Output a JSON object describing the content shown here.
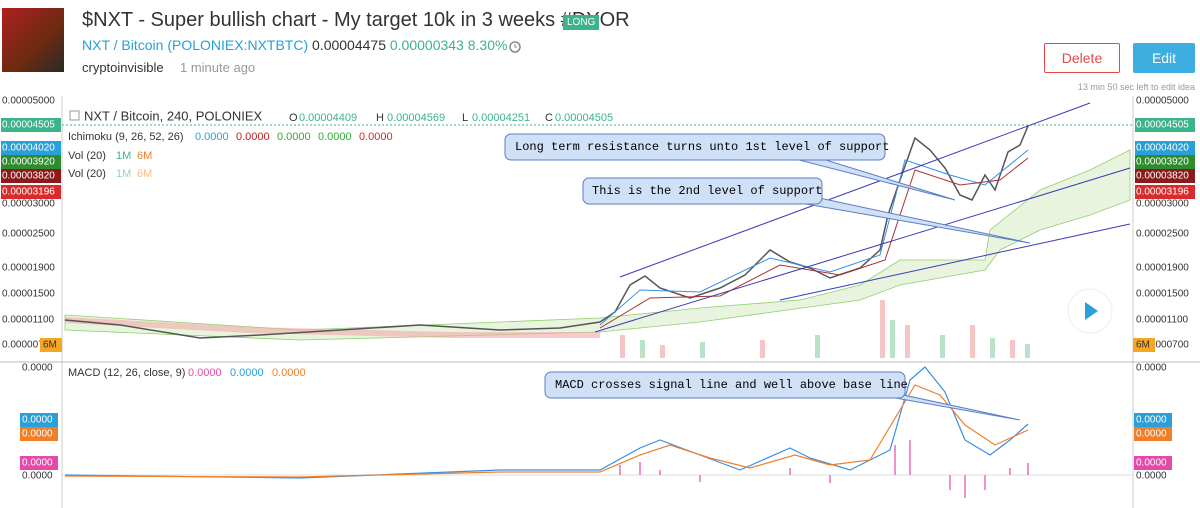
{
  "header": {
    "title": "$NXT - Super bullish chart - My target 10k in 3 weeks #DYOR",
    "badge": "LONG",
    "symbol": "NXT / Bitcoin",
    "exchange": "(POLONIEX:NXTBTC)",
    "price": "0.00004475",
    "change": "0.00000343",
    "change_pct": "8.30%",
    "author": "cryptoinvisible",
    "time": "1 minute ago"
  },
  "actions": {
    "delete": "Delete",
    "edit": "Edit",
    "edit_note": "13 min 50 sec left to edit idea"
  },
  "chart": {
    "legend": {
      "symbol": "NXT / Bitcoin, 240, POLONIEX",
      "open_label": "O",
      "open": "0.00004409",
      "high_label": "H",
      "high": "0.00004569",
      "low_label": "L",
      "low": "0.00004251",
      "close_label": "C",
      "close": "0.00004505"
    },
    "ichimoku": {
      "label": "Ichimoku (9, 26, 52, 26)",
      "values": [
        "0.0000",
        "0.0000",
        "0.0000",
        "0.0000",
        "0.0000"
      ]
    },
    "volume": [
      {
        "label": "Vol (20)",
        "a": "1M",
        "b": "6M"
      },
      {
        "label": "Vol (20)",
        "a": "1M",
        "b": "6M"
      }
    ],
    "price_axis": [
      "0.00005000",
      "0.00004505",
      "0.00004020",
      "0.00003920",
      "0.00003820",
      "0.00003196",
      "0.00003000",
      "0.00002500",
      "0.00001900",
      "0.00001500",
      "0.00001100",
      "0.00000700"
    ],
    "volume_badge": "6M",
    "annotations": [
      "Long term resistance turns unto 1st level of support",
      "This is the 2nd level of support",
      "MACD crosses signal line and well above base line"
    ],
    "macd": {
      "label": "MACD (12, 26, close, 9)",
      "values": [
        "0.0000",
        "0.0000",
        "0.0000"
      ],
      "axis": [
        "0.0000",
        "0.0000",
        "0.0000",
        "0.0000",
        "0.0000"
      ]
    }
  }
}
